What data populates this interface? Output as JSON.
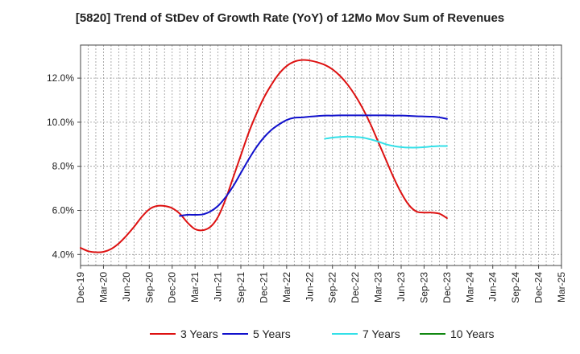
{
  "chart_data": {
    "type": "line",
    "title": "[5820]  Trend of StDev of Growth Rate (YoY) of 12Mo Mov Sum of Revenues",
    "xlabel": "",
    "ylabel": "",
    "ylim": [
      3.5,
      13.5
    ],
    "yticks": [
      4.0,
      6.0,
      8.0,
      10.0,
      12.0
    ],
    "ytick_labels": [
      "4.0%",
      "6.0%",
      "8.0%",
      "10.0%",
      "12.0%"
    ],
    "xtick_labels": [
      "Dec-19",
      "Mar-20",
      "Jun-20",
      "Sep-20",
      "Dec-20",
      "Mar-21",
      "Jun-21",
      "Sep-21",
      "Dec-21",
      "Mar-22",
      "Jun-22",
      "Sep-22",
      "Dec-22",
      "Mar-23",
      "Jun-23",
      "Sep-23",
      "Dec-23",
      "Mar-24",
      "Jun-24",
      "Sep-24",
      "Dec-24",
      "Mar-25"
    ],
    "grid": true,
    "legend_position": "bottom",
    "series": [
      {
        "name": "3 Years",
        "color": "#dd1111",
        "values": [
          4.3,
          4.15,
          4.1,
          4.12,
          4.25,
          4.5,
          4.85,
          5.25,
          5.7,
          6.05,
          6.2,
          6.2,
          6.1,
          5.85,
          5.45,
          5.15,
          5.1,
          5.25,
          5.7,
          6.5,
          7.5,
          8.5,
          9.5,
          10.35,
          11.1,
          11.7,
          12.2,
          12.55,
          12.75,
          12.82,
          12.8,
          12.72,
          12.6,
          12.4,
          12.1,
          11.7,
          11.2,
          10.6,
          9.9,
          9.1,
          8.3,
          7.5,
          6.8,
          6.25,
          5.95,
          5.9,
          5.9,
          5.85,
          5.65
        ]
      },
      {
        "name": "5 Years",
        "color": "#1111cc",
        "values": [
          null,
          null,
          null,
          null,
          null,
          null,
          null,
          null,
          null,
          null,
          null,
          null,
          null,
          5.75,
          5.8,
          5.8,
          5.82,
          5.95,
          6.2,
          6.6,
          7.1,
          7.7,
          8.3,
          8.85,
          9.3,
          9.65,
          9.9,
          10.1,
          10.2,
          10.22,
          10.25,
          10.28,
          10.3,
          10.3,
          10.31,
          10.31,
          10.31,
          10.31,
          10.31,
          10.31,
          10.31,
          10.3,
          10.3,
          10.29,
          10.27,
          10.26,
          10.25,
          10.22,
          10.15
        ]
      },
      {
        "name": "7 Years",
        "color": "#33e0e8",
        "values": [
          null,
          null,
          null,
          null,
          null,
          null,
          null,
          null,
          null,
          null,
          null,
          null,
          null,
          null,
          null,
          null,
          null,
          null,
          null,
          null,
          null,
          null,
          null,
          null,
          null,
          null,
          null,
          null,
          null,
          null,
          null,
          null,
          9.25,
          9.3,
          9.33,
          9.35,
          9.33,
          9.3,
          9.22,
          9.12,
          9.0,
          8.92,
          8.87,
          8.85,
          8.85,
          8.87,
          8.9,
          8.92,
          8.92
        ]
      },
      {
        "name": "10 Years",
        "color": "#118811",
        "values": []
      }
    ]
  }
}
